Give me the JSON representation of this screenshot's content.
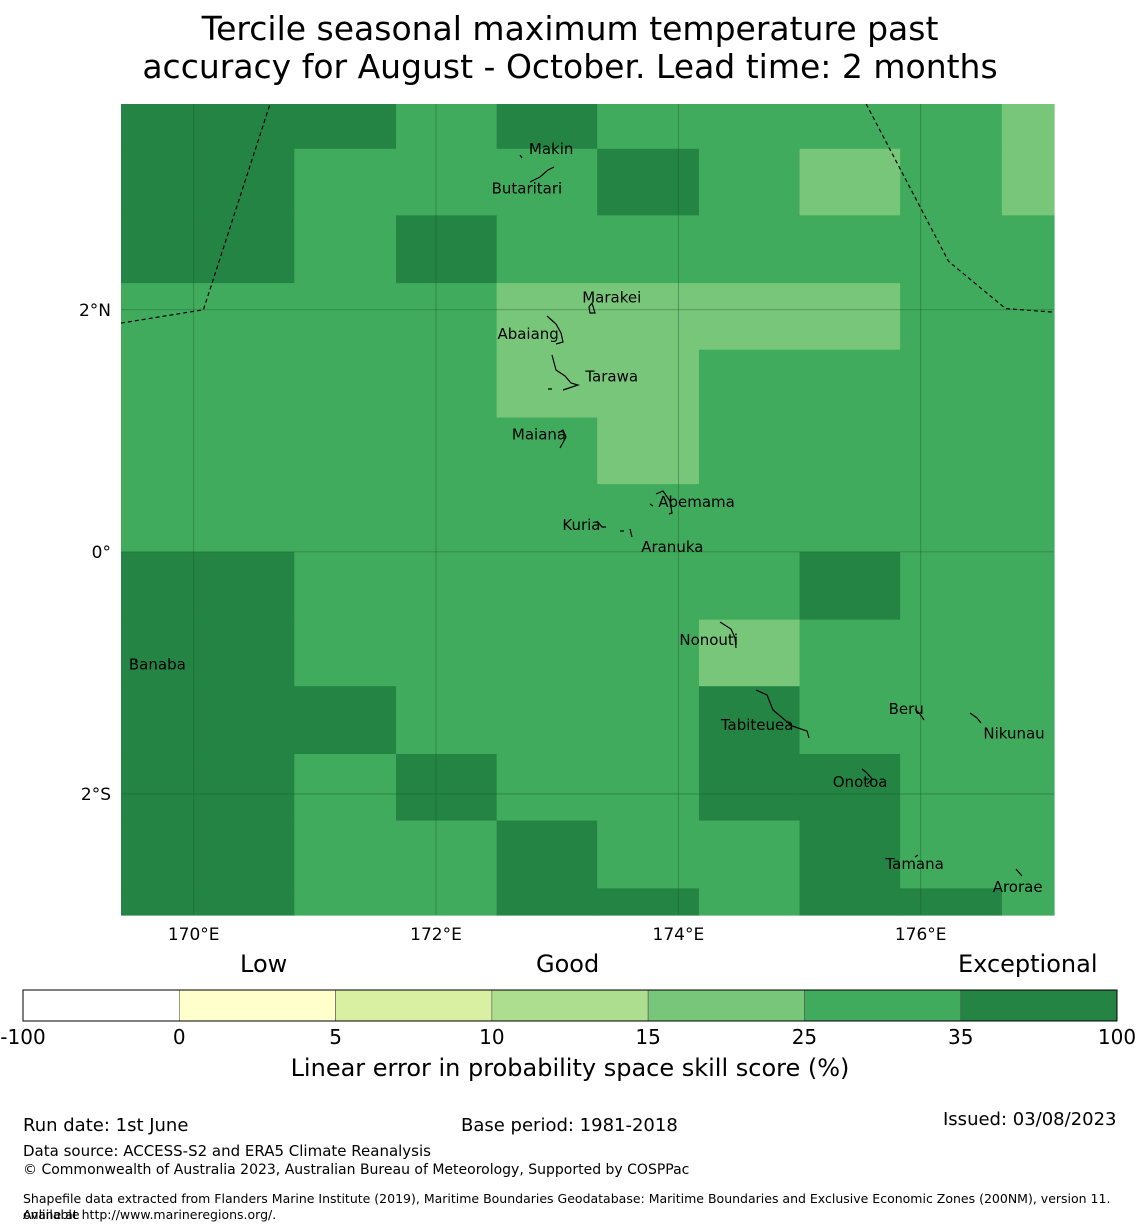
{
  "title": {
    "line1": "Tercile seasonal maximum temperature past",
    "line2": "accuracy for August - October. Lead time: 2 months"
  },
  "map": {
    "lon_range": [
      169.4,
      177.1
    ],
    "lat_range": [
      -3.0,
      3.7
    ],
    "x_ticks": [
      {
        "value": 170,
        "label": "170°E"
      },
      {
        "value": 172,
        "label": "172°E"
      },
      {
        "value": 174,
        "label": "174°E"
      },
      {
        "value": 176,
        "label": "176°E"
      }
    ],
    "y_ticks": [
      {
        "value": 2,
        "label": "2°N"
      },
      {
        "value": 0,
        "label": "0°"
      },
      {
        "value": -2,
        "label": "2°S"
      }
    ],
    "grid_cols": [
      169.4,
      170.83,
      171.67,
      172.5,
      173.33,
      174.17,
      175.0,
      175.83,
      176.67,
      177.1
    ],
    "grid_rows": [
      3.7,
      3.33,
      2.78,
      2.22,
      1.67,
      1.11,
      0.56,
      0.0,
      -0.56,
      -1.11,
      -1.67,
      -2.22,
      -2.78,
      -3.0
    ],
    "cell_levels": [
      [
        6,
        6,
        5,
        6,
        5,
        5,
        5,
        5,
        4
      ],
      [
        6,
        5,
        5,
        5,
        6,
        5,
        4,
        5,
        4
      ],
      [
        6,
        5,
        6,
        5,
        5,
        5,
        5,
        5,
        5
      ],
      [
        5,
        5,
        5,
        4,
        4,
        4,
        4,
        5,
        5
      ],
      [
        5,
        5,
        5,
        4,
        4,
        5,
        5,
        5,
        5
      ],
      [
        5,
        5,
        5,
        5,
        4,
        5,
        5,
        5,
        5
      ],
      [
        5,
        5,
        5,
        5,
        5,
        5,
        5,
        5,
        5
      ],
      [
        6,
        5,
        5,
        5,
        5,
        5,
        6,
        5,
        5
      ],
      [
        6,
        5,
        5,
        5,
        5,
        4,
        5,
        5,
        5
      ],
      [
        6,
        6,
        5,
        5,
        5,
        6,
        5,
        5,
        5
      ],
      [
        6,
        5,
        6,
        5,
        5,
        6,
        6,
        5,
        5
      ],
      [
        6,
        5,
        5,
        6,
        5,
        5,
        6,
        5,
        5
      ],
      [
        6,
        5,
        5,
        6,
        6,
        5,
        6,
        6,
        5
      ]
    ],
    "eez_lines": [
      [
        [
          169.4,
          1.89
        ],
        [
          170.08,
          2.0
        ],
        [
          170.63,
          3.7
        ]
      ],
      [
        [
          175.55,
          3.7
        ],
        [
          176.23,
          2.4
        ],
        [
          176.7,
          2.01
        ],
        [
          177.1,
          1.98
        ]
      ]
    ],
    "places": [
      {
        "name": "Makin",
        "lon": 172.95,
        "lat": 3.33
      },
      {
        "name": "Butaritari",
        "lon": 172.75,
        "lat": 3.0
      },
      {
        "name": "Marakei",
        "lon": 173.45,
        "lat": 2.1
      },
      {
        "name": "Abaiang",
        "lon": 172.76,
        "lat": 1.8
      },
      {
        "name": "Tarawa",
        "lon": 173.45,
        "lat": 1.45
      },
      {
        "name": "Maiana",
        "lon": 172.85,
        "lat": 0.97
      },
      {
        "name": "Abemama",
        "lon": 174.15,
        "lat": 0.41
      },
      {
        "name": "Kuria",
        "lon": 173.2,
        "lat": 0.22
      },
      {
        "name": "Aranuka",
        "lon": 173.95,
        "lat": 0.04
      },
      {
        "name": "Nonouti",
        "lon": 174.25,
        "lat": -0.73
      },
      {
        "name": "Banaba",
        "lon": 169.7,
        "lat": -0.93
      },
      {
        "name": "Beru",
        "lon": 175.88,
        "lat": -1.3
      },
      {
        "name": "Tabiteuea",
        "lon": 174.65,
        "lat": -1.43
      },
      {
        "name": "Nikunau",
        "lon": 176.77,
        "lat": -1.5
      },
      {
        "name": "Onotoa",
        "lon": 175.5,
        "lat": -1.9
      },
      {
        "name": "Tamana",
        "lon": 175.95,
        "lat": -2.58
      },
      {
        "name": "Arorae",
        "lon": 176.8,
        "lat": -2.77
      }
    ]
  },
  "legend": {
    "categories": [
      {
        "label": "Low",
        "position": "left"
      },
      {
        "label": "Good",
        "position": "center"
      },
      {
        "label": "Exceptional",
        "position": "right"
      }
    ],
    "bins": [
      {
        "from": -100,
        "to": 0,
        "color": "#ffffff"
      },
      {
        "from": 0,
        "to": 5,
        "color": "#ffffcc"
      },
      {
        "from": 5,
        "to": 10,
        "color": "#d9f0a3"
      },
      {
        "from": 10,
        "to": 15,
        "color": "#addd8e"
      },
      {
        "from": 15,
        "to": 25,
        "color": "#78c679"
      },
      {
        "from": 25,
        "to": 35,
        "color": "#41ab5d"
      },
      {
        "from": 35,
        "to": 100,
        "color": "#238443"
      }
    ],
    "tick_labels": [
      "-100",
      "0",
      "5",
      "10",
      "15",
      "25",
      "35",
      "100"
    ],
    "title": "Linear error in probability space skill score (%)"
  },
  "footer": {
    "run_date": "Run date: 1st June",
    "base_period": "Base period: 1981-2018",
    "issued": "Issued: 03/08/2023",
    "data_source": "Data source: ACCESS-S2 and ERA5 Climate Reanalysis",
    "copyright": "© Commonwealth of Australia 2023, Australian Bureau of Meteorology, Supported by COSPPac",
    "shapefile_line1": "Shapefile data extracted from Flanders Marine Institute (2019), Maritime Boundaries Geodatabase: Maritime Boundaries and Exclusive Economic Zones (200NM), version 11. Available",
    "shapefile_line2": "online at http://www.marineregions.org/."
  }
}
